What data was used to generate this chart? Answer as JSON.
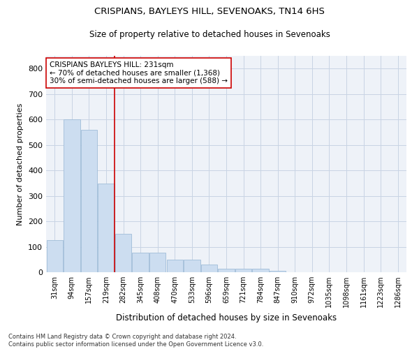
{
  "title": "CRISPIANS, BAYLEYS HILL, SEVENOAKS, TN14 6HS",
  "subtitle": "Size of property relative to detached houses in Sevenoaks",
  "xlabel": "Distribution of detached houses by size in Sevenoaks",
  "ylabel": "Number of detached properties",
  "categories": [
    "31sqm",
    "94sqm",
    "157sqm",
    "219sqm",
    "282sqm",
    "345sqm",
    "408sqm",
    "470sqm",
    "533sqm",
    "596sqm",
    "659sqm",
    "721sqm",
    "784sqm",
    "847sqm",
    "910sqm",
    "972sqm",
    "1035sqm",
    "1098sqm",
    "1161sqm",
    "1223sqm",
    "1286sqm"
  ],
  "values": [
    125,
    600,
    558,
    348,
    150,
    78,
    78,
    50,
    50,
    30,
    15,
    13,
    13,
    5,
    0,
    0,
    0,
    0,
    0,
    0,
    0
  ],
  "bar_color": "#ccddf0",
  "bar_edge_color": "#a0bcd8",
  "annotation_line1": "CRISPIANS BAYLEYS HILL: 231sqm",
  "annotation_line2": "← 70% of detached houses are smaller (1,368)",
  "annotation_line3": "30% of semi-detached houses are larger (588) →",
  "vline_x": 3.47,
  "vline_color": "#cc0000",
  "annotation_box_color": "#ffffff",
  "annotation_box_edge_color": "#cc0000",
  "footnote": "Contains HM Land Registry data © Crown copyright and database right 2024.\nContains public sector information licensed under the Open Government Licence v3.0.",
  "ylim": [
    0,
    850
  ],
  "yticks": [
    0,
    100,
    200,
    300,
    400,
    500,
    600,
    700,
    800
  ],
  "grid_color": "#c8d4e4",
  "background_color": "#eef2f8"
}
